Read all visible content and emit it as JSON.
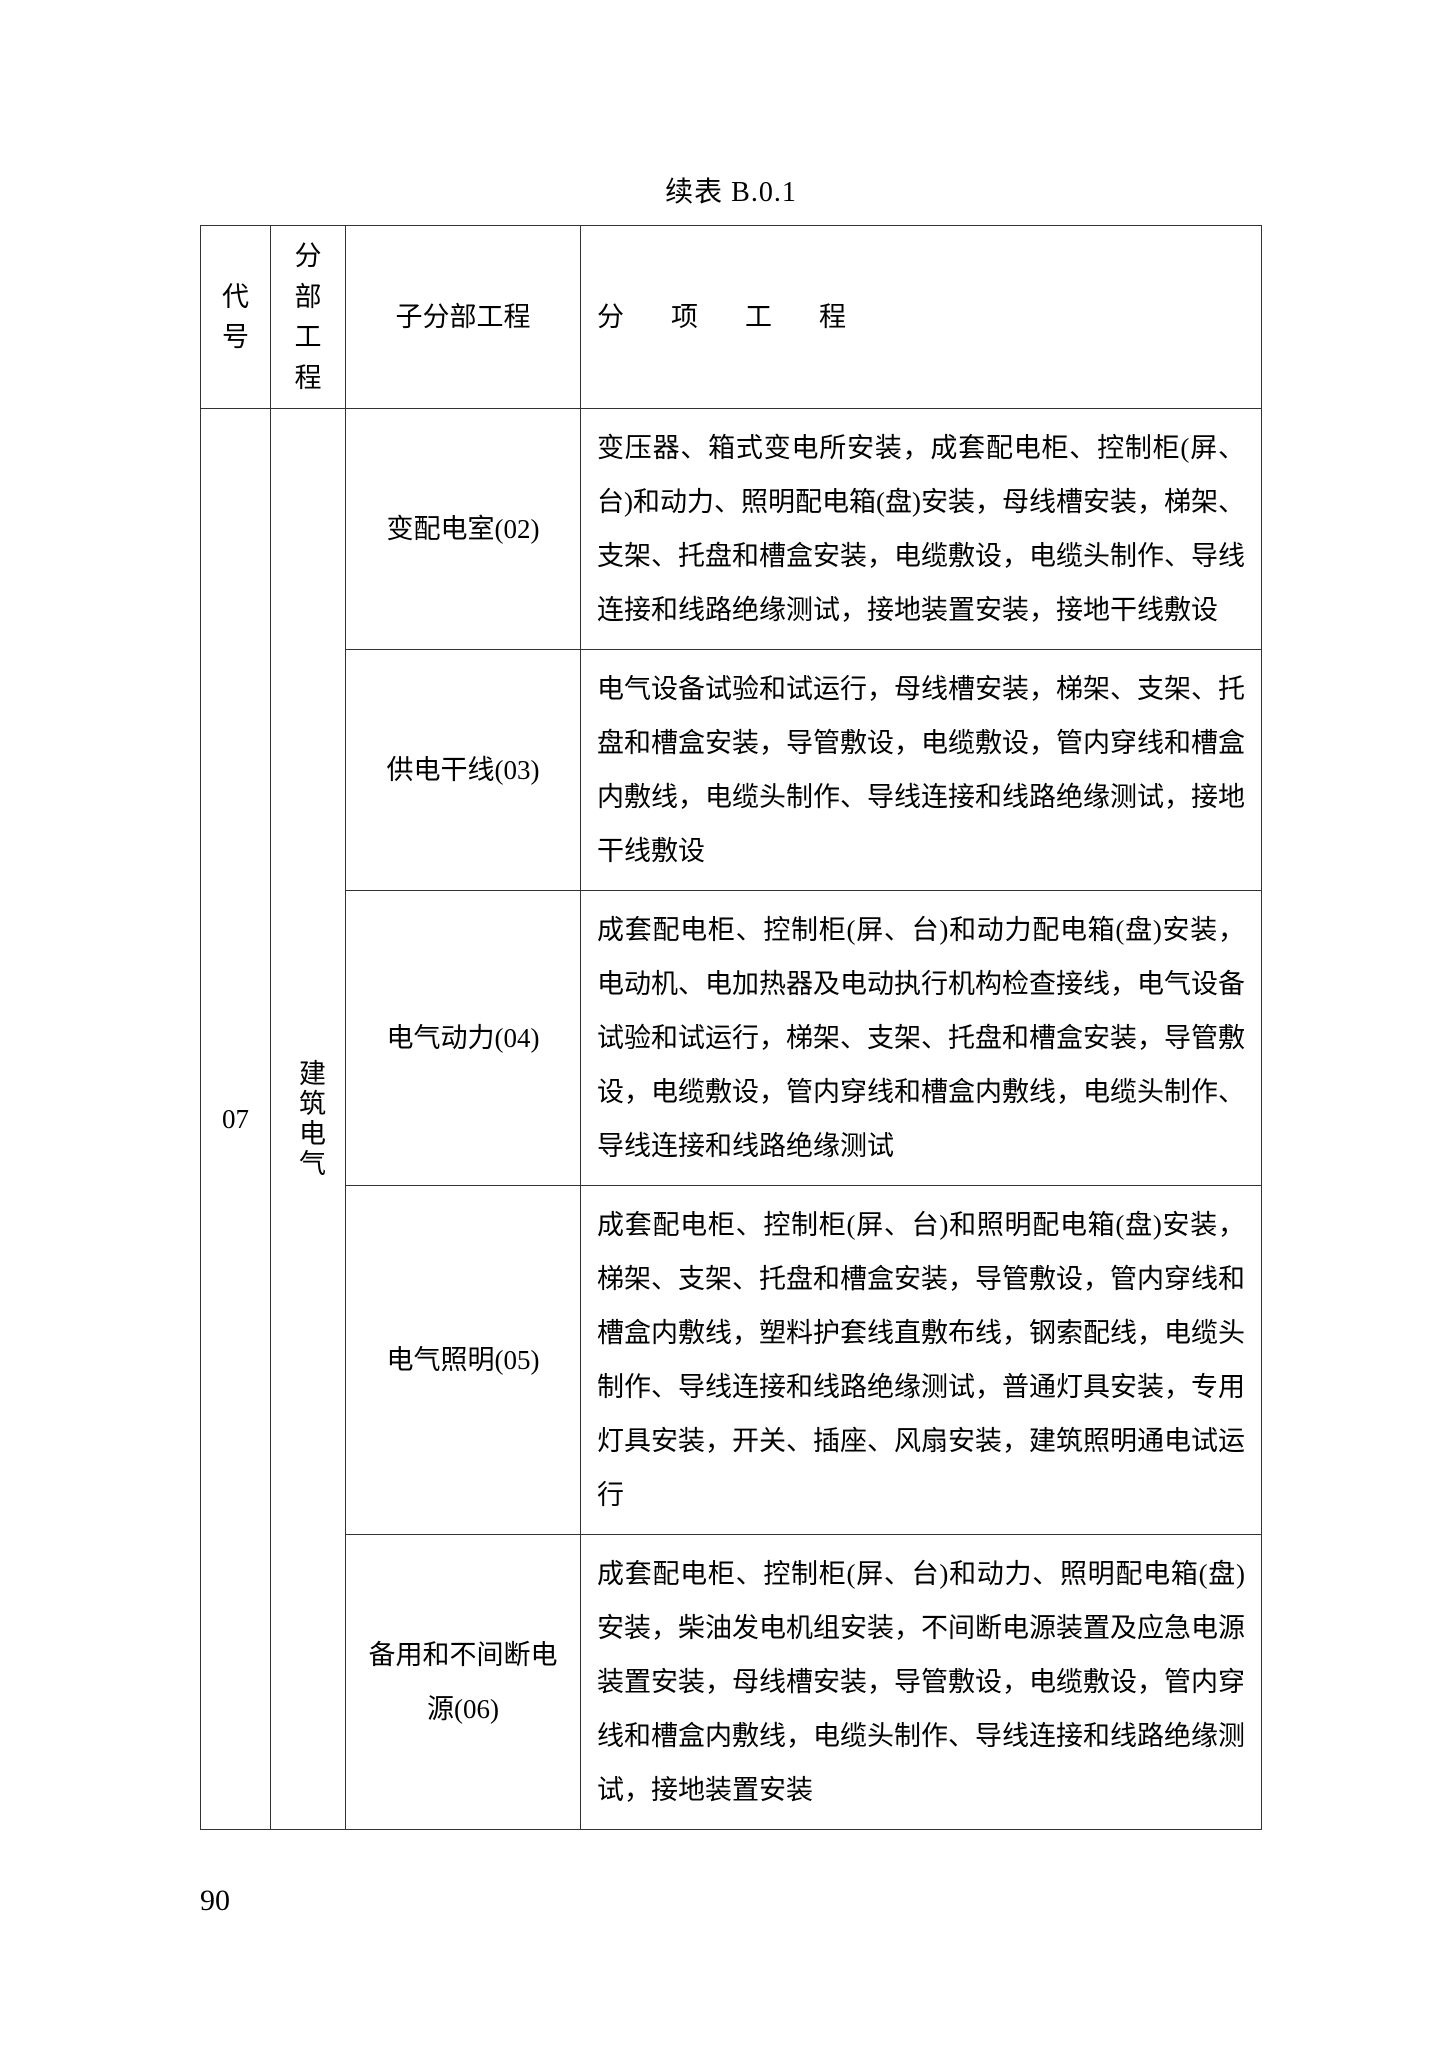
{
  "title": "续表 B.0.1",
  "table": {
    "headers": {
      "code": "代号",
      "section": "分部工程",
      "subsection": "子分部工程",
      "items": "分　项　工　程"
    },
    "code": "07",
    "section": "建筑电气",
    "rows": [
      {
        "subsection": "变配电室(02)",
        "items": "变压器、箱式变电所安装，成套配电柜、控制柜(屏、台)和动力、照明配电箱(盘)安装，母线槽安装，梯架、支架、托盘和槽盒安装，电缆敷设，电缆头制作、导线连接和线路绝缘测试，接地装置安装，接地干线敷设"
      },
      {
        "subsection": "供电干线(03)",
        "items": "电气设备试验和试运行，母线槽安装，梯架、支架、托盘和槽盒安装，导管敷设，电缆敷设，管内穿线和槽盒内敷线，电缆头制作、导线连接和线路绝缘测试，接地干线敷设"
      },
      {
        "subsection": "电气动力(04)",
        "items": "成套配电柜、控制柜(屏、台)和动力配电箱(盘)安装，电动机、电加热器及电动执行机构检查接线，电气设备试验和试运行，梯架、支架、托盘和槽盒安装，导管敷设，电缆敷设，管内穿线和槽盒内敷线，电缆头制作、导线连接和线路绝缘测试"
      },
      {
        "subsection": "电气照明(05)",
        "items": "成套配电柜、控制柜(屏、台)和照明配电箱(盘)安装，梯架、支架、托盘和槽盒安装，导管敷设，管内穿线和槽盒内敷线，塑料护套线直敷布线，钢索配线，电缆头制作、导线连接和线路绝缘测试，普通灯具安装，专用灯具安装，开关、插座、风扇安装，建筑照明通电试运行"
      },
      {
        "subsection": "备用和不间断电源(06)",
        "items": "成套配电柜、控制柜(屏、台)和动力、照明配电箱(盘)安装，柴油发电机组安装，不间断电源装置及应急电源装置安装，母线槽安装，导管敷设，电缆敷设，管内穿线和槽盒内敷线，电缆头制作、导线连接和线路绝缘测试，接地装置安装"
      }
    ]
  },
  "pageNumber": "90"
}
